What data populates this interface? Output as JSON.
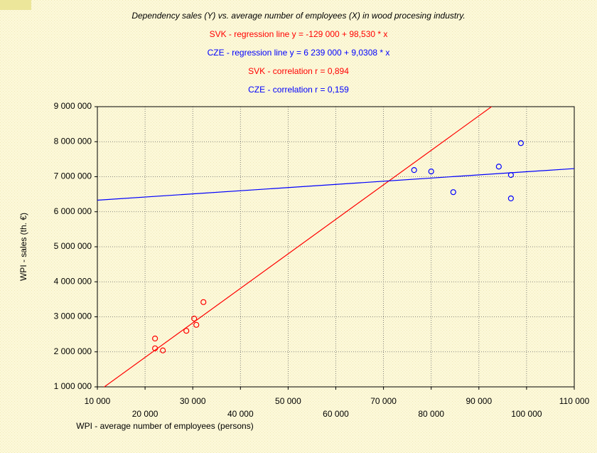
{
  "chart_data": {
    "type": "scatter",
    "title": "Dependency sales (Y) vs. average number of employees (X) in wood procesing industry.",
    "annotations": [
      {
        "text": "SVK - regression line y = -129 000 + 98,530 * x",
        "color": "#ff0000"
      },
      {
        "text": "CZE - regression line y = 6 239 000 + 9,0308 * x",
        "color": "#0000ff"
      },
      {
        "text": "SVK - correlation r = 0,894",
        "color": "#ff0000"
      },
      {
        "text": "CZE - correlation r = 0,159",
        "color": "#0000ff"
      }
    ],
    "x_label": "WPI - average number of employees (persons)",
    "y_label": "WPI - sales (th. €)",
    "series": [
      {
        "color": "#ff0000",
        "x": [
          22090,
          22090,
          23730,
          28660,
          30300,
          30750,
          32240
        ],
        "values": [
          2380000,
          2100000,
          2040000,
          2600000,
          2950000,
          2770000,
          3420000
        ],
        "intercept": -129000,
        "slope": 98.53
      },
      {
        "color": "#0000ff",
        "x": [
          76420,
          80000,
          84630,
          94180,
          96720,
          96720,
          98810
        ],
        "values": [
          7190000,
          7150000,
          6560000,
          7290000,
          7050000,
          6380000,
          7960000
        ],
        "intercept": 6239000,
        "slope": 9.0308
      }
    ],
    "xlim": [
      10000,
      110000
    ],
    "xticks": [
      {
        "value": 10000,
        "label": "10 000"
      },
      {
        "value": 20000,
        "label": "20 000"
      },
      {
        "value": 30000,
        "label": "30 000"
      },
      {
        "value": 40000,
        "label": "40 000"
      },
      {
        "value": 50000,
        "label": "50 000"
      },
      {
        "value": 60000,
        "label": "60 000"
      },
      {
        "value": 70000,
        "label": "70 000"
      },
      {
        "value": 80000,
        "label": "80 000"
      },
      {
        "value": 90000,
        "label": "90 000"
      },
      {
        "value": 100000,
        "label": "100 000"
      },
      {
        "value": 110000,
        "label": "110 000"
      }
    ],
    "ylim": [
      1000000,
      9000000
    ],
    "yticks": [
      {
        "value": 1000000,
        "label": "1 000 000"
      },
      {
        "value": 2000000,
        "label": "2 000 000"
      },
      {
        "value": 3000000,
        "label": "3 000 000"
      },
      {
        "value": 4000000,
        "label": "4 000 000"
      },
      {
        "value": 5000000,
        "label": "5 000 000"
      },
      {
        "value": 6000000,
        "label": "6 000 000"
      },
      {
        "value": 7000000,
        "label": "7 000 000"
      },
      {
        "value": 8000000,
        "label": "8 000 000"
      },
      {
        "value": 9000000,
        "label": "9 000 000"
      }
    ],
    "grid": true
  }
}
